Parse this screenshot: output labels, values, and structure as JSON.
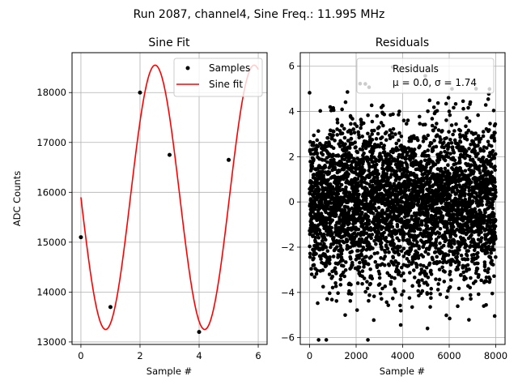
{
  "figure": {
    "suptitle": "Run 2087, channel4, Sine Freq.: 11.995 MHz"
  },
  "chart_data": [
    {
      "type": "line",
      "title": "Sine Fit",
      "xlabel": "Sample #",
      "ylabel": "ADC Counts",
      "xlim": [
        -0.3,
        6.3
      ],
      "ylim": [
        12950,
        18800
      ],
      "xticks": [
        0,
        2,
        4,
        6
      ],
      "yticks": [
        13000,
        14000,
        15000,
        16000,
        17000,
        18000
      ],
      "grid": true,
      "legend_position": "upper right",
      "samples": {
        "name": "Samples",
        "color": "#000000",
        "x": [
          0,
          1,
          2,
          3,
          4,
          5
        ],
        "y": [
          15100,
          13700,
          18000,
          16750,
          13200,
          16650
        ]
      },
      "fit": {
        "name": "Sine fit",
        "color": "#ff0000",
        "offset": 15900,
        "amplitude": 2650,
        "period_samples": 3.35,
        "phase_zero_crossing": 0.0,
        "x_start": 0,
        "x_end": 6.0
      }
    },
    {
      "type": "scatter",
      "title": "Residuals",
      "xlabel": "Sample #",
      "ylabel": "",
      "xlim": [
        -400,
        8400
      ],
      "ylim": [
        -6.3,
        6.6
      ],
      "xticks": [
        0,
        2000,
        4000,
        6000,
        8000
      ],
      "yticks": [
        -6,
        -4,
        -2,
        0,
        2,
        4,
        6
      ],
      "grid": true,
      "legend_position": "upper right",
      "legend_line1": "Residuals",
      "legend_line2": "μ = 0.0, σ = 1.74",
      "series": {
        "name": "Residuals",
        "color": "#000000",
        "n_points": 8000,
        "x_range": [
          0,
          8000
        ],
        "mean": 0.0,
        "std": 1.74,
        "min": -6.1,
        "max": 6.0
      }
    }
  ]
}
